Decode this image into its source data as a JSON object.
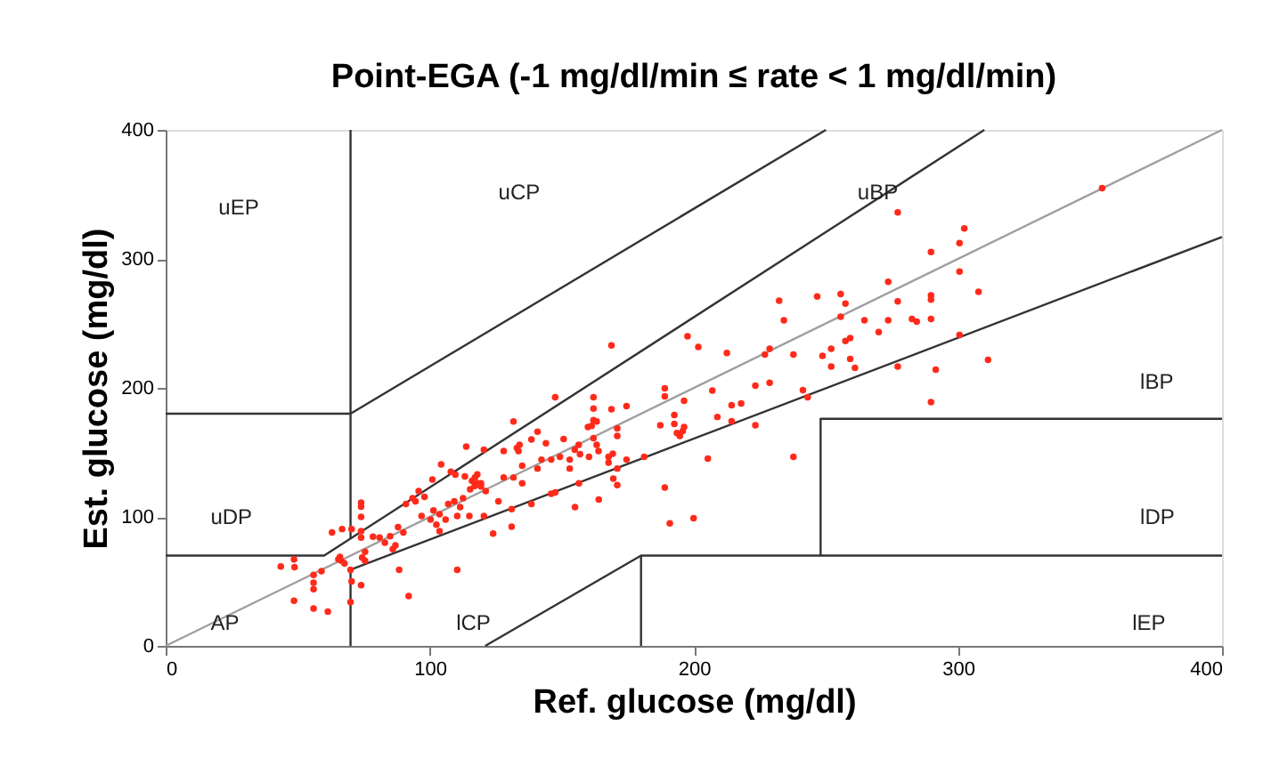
{
  "chart_data": {
    "type": "scatter",
    "title": "Point-EGA (-1 mg/dl/min ≤ rate < 1 mg/dl/min)",
    "xlabel": "Ref. glucose (mg/dl)",
    "ylabel": "Est. glucose (mg/dl)",
    "xlim": [
      0,
      400
    ],
    "ylim": [
      0,
      400
    ],
    "xticks": [
      0,
      100,
      200,
      300,
      400
    ],
    "yticks": [
      0,
      100,
      200,
      300,
      400
    ],
    "marker": "circle",
    "series": [
      {
        "color": "#333333",
        "type": "line",
        "line_style": "solid",
        "marker": "none",
        "x": [
          0,
          70,
          70
        ],
        "values": [
          180,
          180,
          400
        ]
      },
      {
        "color": "#333333",
        "type": "line",
        "line_style": "solid",
        "marker": "none",
        "x": [
          70,
          250
        ],
        "values": [
          180,
          400
        ]
      },
      {
        "color": "#333333",
        "type": "line",
        "line_style": "solid",
        "marker": "none",
        "x": [
          0,
          60,
          310
        ],
        "values": [
          70,
          70,
          400
        ]
      },
      {
        "color": "#333333",
        "type": "line",
        "line_style": "solid",
        "marker": "none",
        "x": [
          70,
          70
        ],
        "values": [
          83,
          180
        ]
      },
      {
        "color": "#333333",
        "type": "line",
        "line_style": "solid",
        "marker": "none",
        "x": [
          70,
          70,
          400
        ],
        "values": [
          0,
          59,
          317
        ]
      },
      {
        "color": "#333333",
        "type": "line",
        "line_style": "solid",
        "marker": "none",
        "x": [
          121,
          180,
          400
        ],
        "values": [
          0,
          70,
          70
        ]
      },
      {
        "color": "#333333",
        "type": "line",
        "line_style": "solid",
        "marker": "none",
        "x": [
          180,
          180
        ],
        "values": [
          0,
          70
        ]
      },
      {
        "color": "#333333",
        "type": "line",
        "line_style": "solid",
        "marker": "none",
        "x": [
          248,
          248,
          400
        ],
        "values": [
          70,
          176,
          176
        ]
      },
      {
        "color": "#a0a0a0",
        "type": "line",
        "line_style": "solid",
        "marker": "none",
        "x": [
          0,
          400
        ],
        "values": [
          0,
          400
        ]
      },
      {
        "color": "#ff2a1a",
        "x": [
          43.6,
          48.6,
          48.8,
          48.6,
          56,
          56,
          56,
          56,
          61.4,
          59,
          63,
          66,
          65.4,
          66.5,
          67.7,
          66.8,
          70.4,
          70,
          70.4,
          70,
          74,
          74,
          74,
          74,
          74,
          75.5,
          74.4,
          75.5,
          74,
          78.5,
          81,
          83,
          85,
          87,
          88,
          90,
          86,
          88.4,
          92,
          91,
          93.5,
          95.8,
          94.6,
          98,
          96.9,
          100.3,
          101.4,
          103.7,
          102.5,
          103.7,
          106,
          107,
          109.3,
          110.4,
          111.5,
          112.6,
          113.8,
          116,
          117,
          119.4,
          120.5,
          118,
          115,
          120.5,
          124,
          110.4,
          126,
          131.7,
          128,
          133,
          133.6,
          134,
          138.5,
          140.8,
          144,
          135,
          135,
          128,
          131.7,
          140.8,
          142.3,
          146,
          149.3,
          150.7,
          153,
          153,
          154.9,
          156.4,
          156.9,
          147.5,
          159.9,
          162,
          163.2,
          162,
          162,
          162,
          160.3,
          163.9,
          168.8,
          171,
          171,
          167.7,
          167.7,
          171,
          174.5,
          174.5,
          181.2,
          168.8,
          169.3,
          169.5,
          156.5,
          155,
          164,
          171,
          138.5,
          131,
          131,
          146,
          147.5,
          189,
          189,
          187.3,
          192.6,
          192.6,
          193.6,
          196.3,
          196.3,
          195.8,
          194.7,
          189,
          190.9,
          199.9,
          205.3,
          197.6,
          201.7,
          207,
          212.5,
          208.9,
          214.3,
          217.9,
          214.3,
          223.3,
          223.3,
          226.9,
          228.7,
          228.7,
          232.3,
          234.1,
          237.7,
          241.3,
          243.1,
          237.7,
          246.7,
          248.7,
          252,
          252,
          255.6,
          257.4,
          255.6,
          257.4,
          259.2,
          259.2,
          261,
          264.6,
          270,
          273.6,
          273.6,
          277.2,
          277.2,
          277.2,
          282.6,
          284.4,
          289.8,
          289.8,
          289.8,
          289.8,
          289.8,
          291.6,
          300.6,
          300.6,
          300.6,
          302.4,
          307.8,
          311.4,
          354.6,
          104.3,
          101,
          108,
          109.7,
          117.1,
          118.2,
          119.4,
          115.3,
          121.2,
          113.3,
          161.3,
          163.2
        ],
        "values": [
          61.6,
          67,
          61,
          35,
          55,
          49,
          44,
          29,
          26.6,
          58,
          88,
          69,
          67,
          66,
          64,
          90.6,
          90.6,
          59,
          50,
          34,
          111,
          108,
          100,
          89,
          84,
          73,
          68.5,
          66,
          47,
          84.6,
          84,
          80,
          85,
          78,
          92,
          88,
          75,
          59,
          38.6,
          110,
          114.5,
          120,
          112,
          115.5,
          100.7,
          98,
          105,
          102,
          94,
          89,
          98,
          110,
          112,
          100.7,
          107.6,
          114.5,
          154.5,
          128,
          124,
          126,
          152,
          133,
          100.7,
          100.7,
          87,
          59,
          112,
          174,
          151,
          153.5,
          151,
          155.9,
          160,
          166,
          157,
          139.7,
          126,
          130.6,
          130.6,
          137.5,
          144.4,
          144.4,
          146.6,
          160.4,
          144.4,
          137.5,
          152,
          155.9,
          148.6,
          192.7,
          169.7,
          175,
          174,
          184,
          192.7,
          161,
          146.6,
          151,
          183.4,
          168.7,
          162.8,
          142,
          146.6,
          137.5,
          185.8,
          144.4,
          146.6,
          233,
          149,
          129.6,
          126,
          107.6,
          113.5,
          124.6,
          110,
          106,
          92.4,
          118,
          119,
          199.6,
          193.5,
          171,
          178.9,
          172,
          165,
          169.7,
          190,
          166.5,
          162.8,
          122.8,
          95,
          98.9,
          145.2,
          240,
          231.7,
          198,
          227,
          177.5,
          186.6,
          188,
          174.2,
          201.8,
          171,
          225.8,
          230.3,
          204,
          267.6,
          252.4,
          225.8,
          198.2,
          192.7,
          146.6,
          270.8,
          224.8,
          230.3,
          216.6,
          272.7,
          265.3,
          255.2,
          236.3,
          238.6,
          222.5,
          215.6,
          252.4,
          243.2,
          282.3,
          252.4,
          267,
          216.6,
          336.1,
          253.4,
          251.4,
          305.3,
          271.7,
          268.5,
          253.4,
          189,
          214.2,
          312.2,
          290.1,
          241,
          323.7,
          274.5,
          221.7,
          354.9,
          140.7,
          129,
          135,
          132.8,
          130.6,
          126,
          123.7,
          121.4,
          120,
          131.4,
          170.6,
          155.9
        ]
      }
    ],
    "annotations": [
      "uEP",
      "uCP",
      "uBP",
      "uDP",
      "AP",
      "lCP",
      "lBP",
      "lDP",
      "lEP"
    ]
  }
}
